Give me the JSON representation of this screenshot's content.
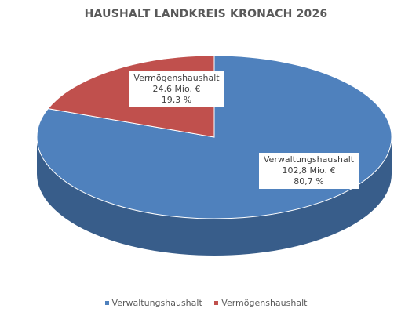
{
  "chart_data": {
    "type": "pie",
    "title": "HAUSHALT LANDKREIS KRONACH 2026",
    "slices": [
      {
        "name": "Verwaltungshaushalt",
        "value": 102.8,
        "value_label": "102,8 Mio. €",
        "percent": 80.7,
        "percent_label": "80,7 %",
        "color": "#4f81bd",
        "side_color": "#385d8a"
      },
      {
        "name": "Vermögenshaushalt",
        "value": 24.6,
        "value_label": "24,6 Mio. €",
        "percent": 19.3,
        "percent_label": "19,3 %",
        "color": "#c0504d",
        "side_color": "#8c3836"
      }
    ],
    "legend_position": "bottom",
    "style": "3d"
  }
}
